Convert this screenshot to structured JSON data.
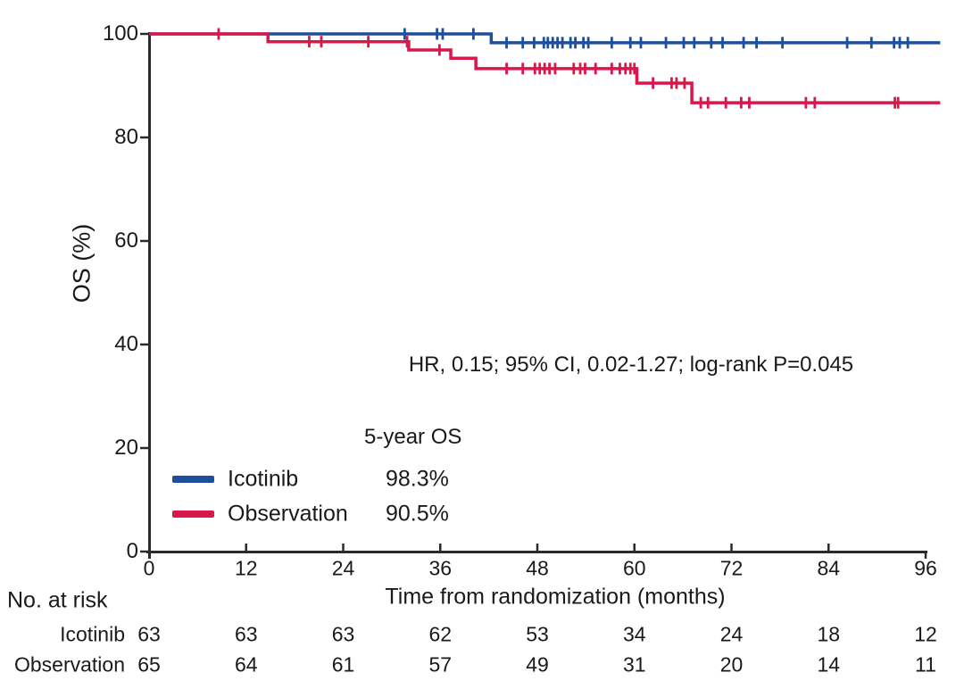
{
  "chart_data": {
    "type": "line",
    "subtype": "kaplan-meier-step",
    "title": "",
    "xlabel": "Time from randomization (months)",
    "ylabel": "OS (%)",
    "xlim": [
      0,
      96
    ],
    "ylim": [
      0,
      100
    ],
    "x_ticks": [
      0,
      12,
      24,
      36,
      48,
      60,
      72,
      84,
      96
    ],
    "y_ticks": [
      0,
      20,
      40,
      60,
      80,
      100
    ],
    "grid": false,
    "annotation": "HR, 0.15; 95% CI, 0.02-1.27; log-rank P=0.045",
    "legend": {
      "position": "bottom-left-inside",
      "header": "5-year OS",
      "entries": [
        {
          "name": "Icotinib",
          "value": "98.3%",
          "color": "#1d4f9e"
        },
        {
          "name": "Observation",
          "value": "90.5%",
          "color": "#d8174a"
        }
      ]
    },
    "series": [
      {
        "name": "Icotinib",
        "color": "#1d4f9e",
        "steps": [
          [
            0,
            100
          ],
          [
            42.3,
            100
          ],
          [
            42.3,
            98.3
          ],
          [
            97.8,
            98.3
          ]
        ],
        "censors": [
          [
            31.6,
            100
          ],
          [
            35.6,
            100
          ],
          [
            36.3,
            100
          ],
          [
            40.1,
            100
          ],
          [
            44.2,
            98.3
          ],
          [
            46.2,
            98.3
          ],
          [
            47.6,
            98.3
          ],
          [
            48.8,
            98.3
          ],
          [
            49.3,
            98.3
          ],
          [
            49.9,
            98.3
          ],
          [
            50.5,
            98.3
          ],
          [
            51.1,
            98.3
          ],
          [
            52.1,
            98.3
          ],
          [
            52.7,
            98.3
          ],
          [
            53.7,
            98.3
          ],
          [
            54.3,
            98.3
          ],
          [
            57.2,
            98.3
          ],
          [
            59.5,
            98.3
          ],
          [
            60.8,
            98.3
          ],
          [
            63.9,
            98.3
          ],
          [
            66.1,
            98.3
          ],
          [
            67.4,
            98.3
          ],
          [
            69.5,
            98.3
          ],
          [
            70.9,
            98.3
          ],
          [
            73.5,
            98.3
          ],
          [
            75.1,
            98.3
          ],
          [
            78.3,
            98.3
          ],
          [
            86.3,
            98.3
          ],
          [
            89.3,
            98.3
          ],
          [
            92.1,
            98.3
          ],
          [
            92.8,
            98.3
          ],
          [
            93.8,
            98.3
          ]
        ]
      },
      {
        "name": "Observation",
        "color": "#d8174a",
        "steps": [
          [
            0,
            100
          ],
          [
            14.7,
            100
          ],
          [
            14.7,
            98.5
          ],
          [
            32.1,
            98.5
          ],
          [
            32.1,
            96.9
          ],
          [
            37.3,
            96.9
          ],
          [
            37.3,
            95.3
          ],
          [
            40.4,
            95.3
          ],
          [
            40.4,
            93.3
          ],
          [
            60.3,
            93.3
          ],
          [
            60.3,
            90.5
          ],
          [
            67.1,
            90.5
          ],
          [
            67.1,
            86.7
          ],
          [
            97.8,
            86.7
          ]
        ],
        "censors": [
          [
            8.6,
            100
          ],
          [
            19.8,
            98.5
          ],
          [
            21.3,
            98.5
          ],
          [
            27.1,
            98.5
          ],
          [
            31.9,
            98.5
          ],
          [
            35.9,
            96.9
          ],
          [
            44.2,
            93.3
          ],
          [
            46.2,
            93.3
          ],
          [
            47.7,
            93.3
          ],
          [
            48.3,
            93.3
          ],
          [
            48.9,
            93.3
          ],
          [
            49.5,
            93.3
          ],
          [
            50.2,
            93.3
          ],
          [
            52.5,
            93.3
          ],
          [
            53.3,
            93.3
          ],
          [
            53.9,
            93.3
          ],
          [
            55.2,
            93.3
          ],
          [
            57.2,
            93.3
          ],
          [
            58.2,
            93.3
          ],
          [
            58.9,
            93.3
          ],
          [
            59.5,
            93.3
          ],
          [
            60.0,
            93.3
          ],
          [
            62.3,
            90.5
          ],
          [
            64.6,
            90.5
          ],
          [
            65.2,
            90.5
          ],
          [
            66.2,
            90.5
          ],
          [
            68.2,
            86.7
          ],
          [
            69.1,
            86.7
          ],
          [
            71.3,
            86.7
          ],
          [
            73.2,
            86.7
          ],
          [
            74.2,
            86.7
          ],
          [
            81.2,
            86.7
          ],
          [
            82.3,
            86.7
          ],
          [
            92.2,
            86.7
          ],
          [
            92.6,
            86.7
          ]
        ]
      }
    ],
    "risk_table": {
      "label": "No. at risk",
      "months": [
        0,
        12,
        24,
        36,
        48,
        60,
        72,
        84,
        96
      ],
      "rows": [
        {
          "name": "Icotinib",
          "values": [
            63,
            63,
            63,
            62,
            53,
            34,
            24,
            18,
            12
          ]
        },
        {
          "name": "Observation",
          "values": [
            65,
            64,
            61,
            57,
            49,
            31,
            20,
            14,
            11
          ]
        }
      ]
    },
    "colors": {
      "axis": "#2a2a2a",
      "text": "#1a1a1a"
    }
  }
}
